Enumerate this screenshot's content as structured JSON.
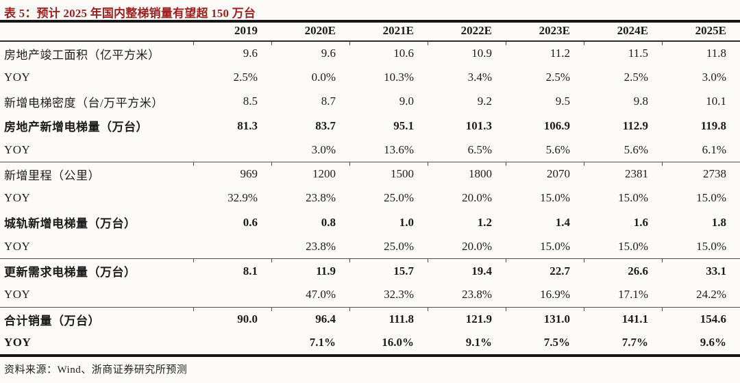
{
  "title": "表 5：预计 2025 年国内整梯销量有望超 150 万台",
  "source": "资料来源：Wind、浙商证券研究所预测",
  "colors": {
    "title_red": "#9e1f1f",
    "text": "#1b1b1b",
    "rule_heavy": "#161616",
    "rule_light": "#4f4f4f",
    "background": "#fcfbf8"
  },
  "table": {
    "header": [
      "",
      "2019",
      "2020E",
      "2021E",
      "2022E",
      "2023E",
      "2024E",
      "2025E"
    ],
    "rows": [
      {
        "label": "房地产竣工面积（亿平方米）",
        "bold": false,
        "divider": false,
        "values": [
          "9.6",
          "9.6",
          "10.6",
          "10.9",
          "11.2",
          "11.5",
          "11.8"
        ]
      },
      {
        "label": "YOY",
        "bold": false,
        "divider": false,
        "values": [
          "2.5%",
          "0.0%",
          "10.3%",
          "3.4%",
          "2.5%",
          "2.5%",
          "3.0%"
        ]
      },
      {
        "label": "新增电梯密度（台/万平方米）",
        "bold": false,
        "divider": false,
        "values": [
          "8.5",
          "8.7",
          "9.0",
          "9.2",
          "9.5",
          "9.8",
          "10.1"
        ]
      },
      {
        "label": "房地产新增电梯量（万台）",
        "bold": true,
        "divider": false,
        "values": [
          "81.3",
          "83.7",
          "95.1",
          "101.3",
          "106.9",
          "112.9",
          "119.8"
        ]
      },
      {
        "label": "YOY",
        "bold": false,
        "divider": false,
        "values": [
          "",
          "3.0%",
          "13.6%",
          "6.5%",
          "5.6%",
          "5.6%",
          "6.1%"
        ]
      },
      {
        "label": "新增里程（公里）",
        "bold": false,
        "divider": true,
        "values": [
          "969",
          "1200",
          "1500",
          "1800",
          "2070",
          "2381",
          "2738"
        ]
      },
      {
        "label": "YOY",
        "bold": false,
        "divider": false,
        "values": [
          "32.9%",
          "23.8%",
          "25.0%",
          "20.0%",
          "15.0%",
          "15.0%",
          "15.0%"
        ]
      },
      {
        "label": "城轨新增电梯量（万台）",
        "bold": true,
        "divider": false,
        "values": [
          "0.6",
          "0.8",
          "1.0",
          "1.2",
          "1.4",
          "1.6",
          "1.8"
        ]
      },
      {
        "label": "YOY",
        "bold": false,
        "divider": false,
        "values": [
          "",
          "23.8%",
          "25.0%",
          "20.0%",
          "15.0%",
          "15.0%",
          "15.0%"
        ]
      },
      {
        "label": "更新需求电梯量（万台）",
        "bold": true,
        "divider": true,
        "values": [
          "8.1",
          "11.9",
          "15.7",
          "19.4",
          "22.7",
          "26.6",
          "33.1"
        ]
      },
      {
        "label": "YOY",
        "bold": false,
        "divider": false,
        "values": [
          "",
          "47.0%",
          "32.3%",
          "23.8%",
          "16.9%",
          "17.1%",
          "24.2%"
        ]
      },
      {
        "label": "合计销量（万台）",
        "bold": true,
        "divider": true,
        "values": [
          "90.0",
          "96.4",
          "111.8",
          "121.9",
          "131.0",
          "141.1",
          "154.6"
        ]
      },
      {
        "label": "YOY",
        "bold": true,
        "divider": false,
        "values": [
          "",
          "7.1%",
          "16.0%",
          "9.1%",
          "7.5%",
          "7.7%",
          "9.6%"
        ]
      }
    ]
  }
}
